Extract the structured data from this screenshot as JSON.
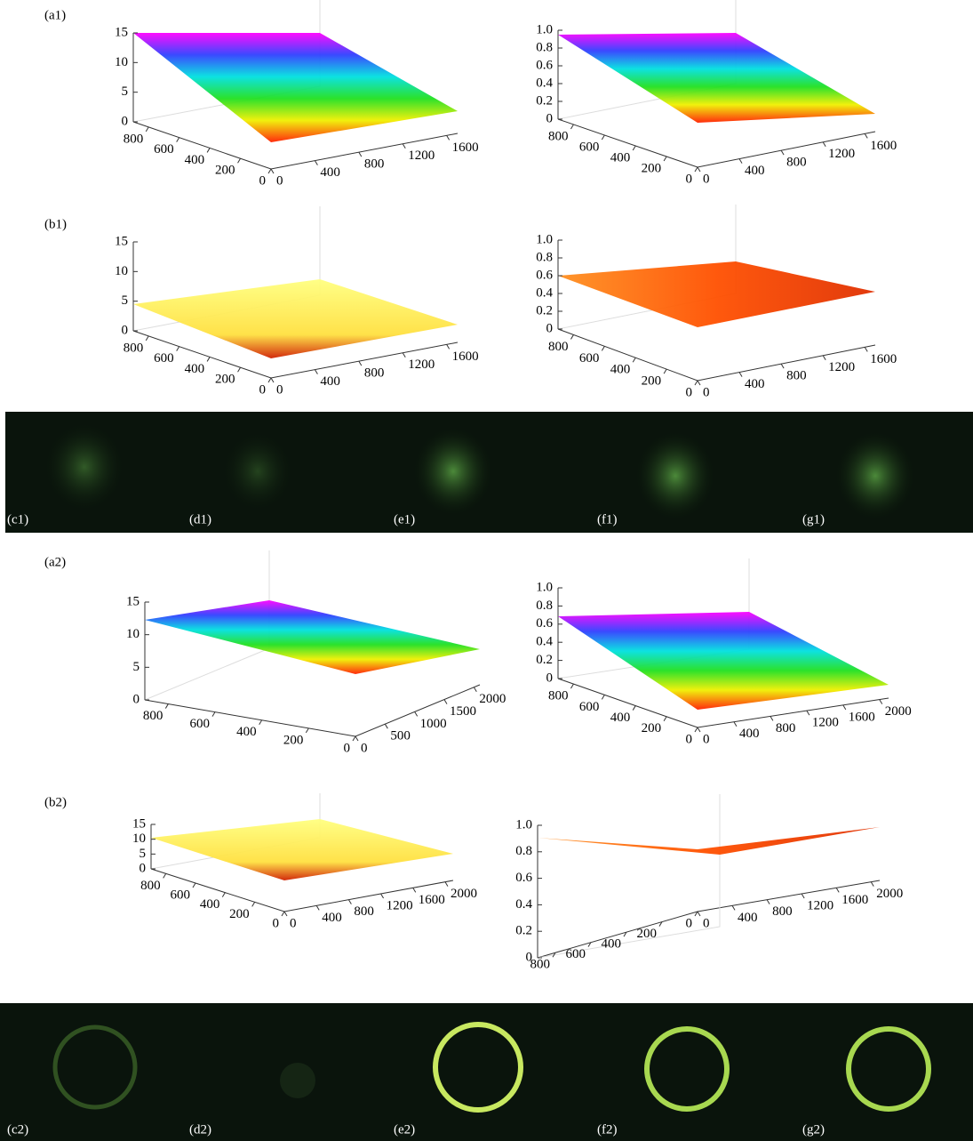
{
  "figure": {
    "panel_labels": [
      "(a1)",
      "(b1)",
      "(a2)",
      "(b2)"
    ],
    "photo_labels_1": [
      "(c1)",
      "(d1)",
      "(e1)",
      "(f1)",
      "(g1)"
    ],
    "photo_labels_2": [
      "(c2)",
      "(d2)",
      "(e2)",
      "(f2)",
      "(g2)"
    ],
    "plots": [
      {
        "zticks": [
          0,
          5,
          10,
          15
        ],
        "zlim": [
          0,
          15
        ],
        "xticks": [
          0,
          200,
          400,
          600,
          800
        ],
        "xlim": [
          0,
          900
        ],
        "yticks": [
          0,
          400,
          800,
          1200,
          1600
        ],
        "ylim": [
          0,
          1700
        ]
      },
      {
        "zticks": [
          0,
          0.2,
          0.4,
          0.6,
          0.8,
          {
            "value": 1,
            "label": "1.0"
          }
        ],
        "zlim": [
          0,
          1
        ],
        "xticks": [
          0,
          200,
          400,
          600,
          800
        ],
        "xlim": [
          0,
          900
        ],
        "yticks": [
          0,
          400,
          800,
          1200,
          1600
        ],
        "ylim": [
          0,
          1700
        ]
      },
      {
        "zticks": [
          0,
          5,
          10,
          15
        ],
        "zlim": [
          0,
          15
        ],
        "xticks": [
          0,
          200,
          400,
          600,
          800
        ],
        "xlim": [
          0,
          900
        ],
        "yticks": [
          0,
          400,
          800,
          1200,
          1600
        ],
        "ylim": [
          0,
          1700
        ]
      },
      {
        "zticks": [
          0,
          0.2,
          0.4,
          0.6,
          0.8,
          {
            "value": 1,
            "label": "1.0"
          }
        ],
        "zlim": [
          0,
          1
        ],
        "xticks": [
          0,
          200,
          400,
          600,
          800
        ],
        "xlim": [
          0,
          900
        ],
        "yticks": [
          0,
          400,
          800,
          1200,
          1600
        ],
        "ylim": [
          0,
          1700
        ]
      },
      {
        "zticks": [
          0,
          5,
          10,
          15
        ],
        "zlim": [
          0,
          15
        ],
        "xticks": [
          0,
          200,
          400,
          600,
          800
        ],
        "xlim": [
          0,
          900
        ],
        "yticks": [
          0,
          500,
          1000,
          1500,
          2000
        ],
        "ylim": [
          0,
          2100
        ]
      },
      {
        "zticks": [
          0,
          0.2,
          0.4,
          0.6,
          0.8,
          {
            "value": 1,
            "label": "1.0"
          }
        ],
        "zlim": [
          0,
          1
        ],
        "xticks": [
          0,
          200,
          400,
          600,
          800
        ],
        "xlim": [
          0,
          900
        ],
        "yticks": [
          0,
          400,
          800,
          1200,
          1600,
          2000
        ],
        "ylim": [
          0,
          2100
        ]
      },
      {
        "zticks": [
          0,
          5,
          10,
          15
        ],
        "zlim": [
          0,
          15
        ],
        "xticks": [
          0,
          200,
          400,
          600,
          800
        ],
        "xlim": [
          0,
          900
        ],
        "yticks": [
          0,
          400,
          800,
          1200,
          1600,
          2000
        ],
        "ylim": [
          0,
          2100
        ]
      },
      {
        "zticks": [
          0,
          0.2,
          0.4,
          0.6,
          0.8,
          {
            "value": 1,
            "label": "1.0"
          }
        ],
        "zlim": [
          0,
          1
        ],
        "xticks": [
          0,
          200,
          400,
          600,
          800
        ],
        "xlim": [
          0,
          900
        ],
        "yticks": [
          0,
          400,
          800,
          1200,
          1600,
          2000
        ],
        "ylim": [
          0,
          2100
        ]
      }
    ]
  }
}
